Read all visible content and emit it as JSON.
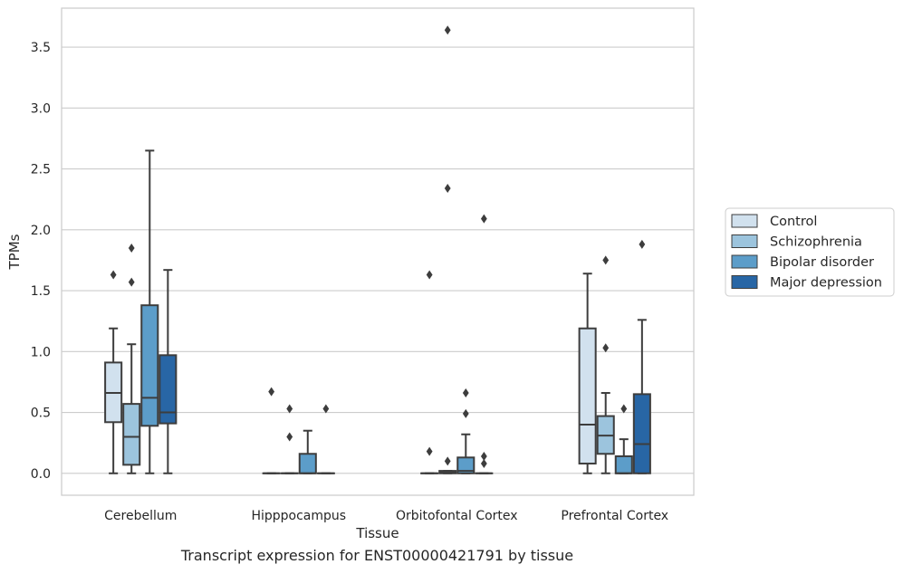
{
  "caption": "Transcript expression for ENST00000421791 by tissue",
  "chart_data": {
    "type": "boxplot",
    "xlabel": "Tissue",
    "ylabel": "TPMs",
    "ylim": [
      -0.18,
      3.82
    ],
    "yticks": [
      0.0,
      0.5,
      1.0,
      1.5,
      2.0,
      2.5,
      3.0,
      3.5
    ],
    "ytick_labels": [
      "0.0",
      "0.5",
      "1.0",
      "1.5",
      "2.0",
      "2.5",
      "3.0",
      "3.5"
    ],
    "grid": true,
    "legend_position": "right",
    "categories": [
      "Cerebellum",
      "Hipppocampus",
      "Orbitofontal Cortex",
      "Prefrontal Cortex"
    ],
    "series": [
      {
        "name": "Control",
        "color": "#d1e1ee",
        "boxes": [
          {
            "q1": 0.42,
            "median": 0.66,
            "q3": 0.91,
            "whisker_low": 0.0,
            "whisker_high": 1.19,
            "outliers": [
              1.63
            ]
          },
          {
            "q1": 0.0,
            "median": 0.0,
            "q3": 0.0,
            "whisker_low": 0.0,
            "whisker_high": 0.0,
            "outliers": [
              0.67
            ]
          },
          {
            "q1": 0.0,
            "median": 0.0,
            "q3": 0.0,
            "whisker_low": 0.0,
            "whisker_high": 0.0,
            "outliers": [
              1.63,
              0.18
            ]
          },
          {
            "q1": 0.08,
            "median": 0.4,
            "q3": 1.19,
            "whisker_low": 0.0,
            "whisker_high": 1.64,
            "outliers": []
          }
        ]
      },
      {
        "name": "Schizophrenia",
        "color": "#9cc4dd",
        "boxes": [
          {
            "q1": 0.07,
            "median": 0.3,
            "q3": 0.57,
            "whisker_low": 0.0,
            "whisker_high": 1.06,
            "outliers": [
              1.85,
              1.57
            ]
          },
          {
            "q1": 0.0,
            "median": 0.0,
            "q3": 0.0,
            "whisker_low": 0.0,
            "whisker_high": 0.0,
            "outliers": [
              0.53,
              0.3
            ]
          },
          {
            "q1": 0.0,
            "median": 0.01,
            "q3": 0.02,
            "whisker_low": 0.0,
            "whisker_high": 0.02,
            "outliers": [
              3.64,
              2.34,
              0.1
            ]
          },
          {
            "q1": 0.16,
            "median": 0.31,
            "q3": 0.47,
            "whisker_low": 0.0,
            "whisker_high": 0.66,
            "outliers": [
              1.75,
              1.03
            ]
          }
        ]
      },
      {
        "name": "Bipolar disorder",
        "color": "#5c9dc9",
        "boxes": [
          {
            "q1": 0.39,
            "median": 0.62,
            "q3": 1.38,
            "whisker_low": 0.0,
            "whisker_high": 2.65,
            "outliers": []
          },
          {
            "q1": 0.0,
            "median": 0.0,
            "q3": 0.16,
            "whisker_low": 0.0,
            "whisker_high": 0.35,
            "outliers": []
          },
          {
            "q1": 0.0,
            "median": 0.02,
            "q3": 0.13,
            "whisker_low": 0.0,
            "whisker_high": 0.32,
            "outliers": [
              0.66,
              0.49
            ]
          },
          {
            "q1": 0.0,
            "median": 0.0,
            "q3": 0.14,
            "whisker_low": 0.0,
            "whisker_high": 0.28,
            "outliers": [
              0.53
            ]
          }
        ]
      },
      {
        "name": "Major depression",
        "color": "#2866a5",
        "boxes": [
          {
            "q1": 0.41,
            "median": 0.5,
            "q3": 0.97,
            "whisker_low": 0.0,
            "whisker_high": 1.67,
            "outliers": []
          },
          {
            "q1": 0.0,
            "median": 0.0,
            "q3": 0.0,
            "whisker_low": 0.0,
            "whisker_high": 0.0,
            "outliers": [
              0.53
            ]
          },
          {
            "q1": 0.0,
            "median": 0.0,
            "q3": 0.0,
            "whisker_low": 0.0,
            "whisker_high": 0.0,
            "outliers": [
              2.09,
              0.14,
              0.08
            ]
          },
          {
            "q1": 0.0,
            "median": 0.24,
            "q3": 0.65,
            "whisker_low": 0.0,
            "whisker_high": 1.26,
            "outliers": [
              1.88
            ]
          }
        ]
      }
    ]
  }
}
